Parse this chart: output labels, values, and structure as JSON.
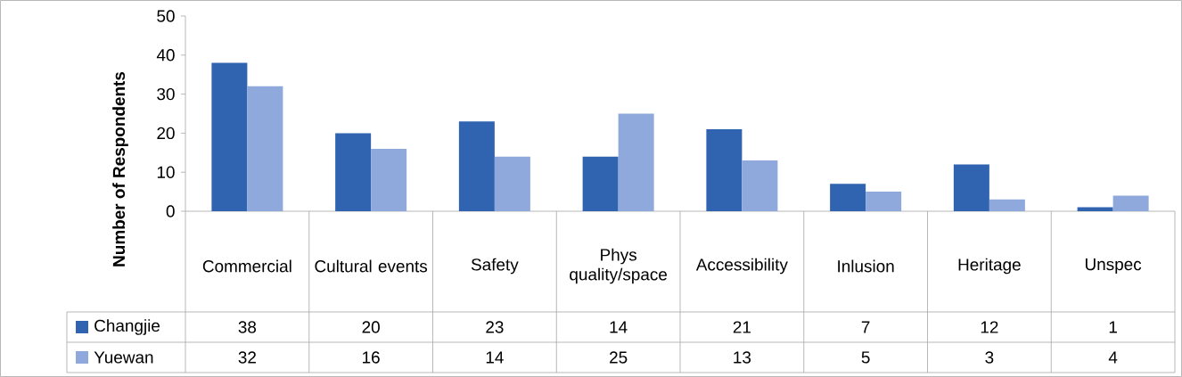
{
  "chart_data": {
    "type": "bar",
    "ylabel": "Number of Respondents",
    "categories": [
      "Commercial",
      "Cultural events",
      "Safety",
      "Phys quality/space",
      "Accessibility",
      "Inlusion",
      "Heritage",
      "Unspec"
    ],
    "series": [
      {
        "name": "Changjie",
        "color": "#3063b0",
        "values": [
          38,
          20,
          23,
          14,
          21,
          7,
          12,
          1
        ],
        "value_labels": [
          "38",
          "20",
          "23",
          "14",
          "21",
          "7",
          "12",
          "1"
        ]
      },
      {
        "name": "Yuewan",
        "color": "#8fa9dc",
        "values": [
          32,
          16,
          14,
          25,
          13,
          5,
          3,
          4
        ],
        "value_labels": [
          "32",
          "16",
          "14",
          "25",
          "13",
          "5",
          "3",
          "4"
        ]
      }
    ],
    "ylim": [
      0,
      50
    ],
    "yticks": [
      0,
      10,
      20,
      30,
      40,
      50
    ],
    "legend": "bottom left",
    "grid": false
  }
}
